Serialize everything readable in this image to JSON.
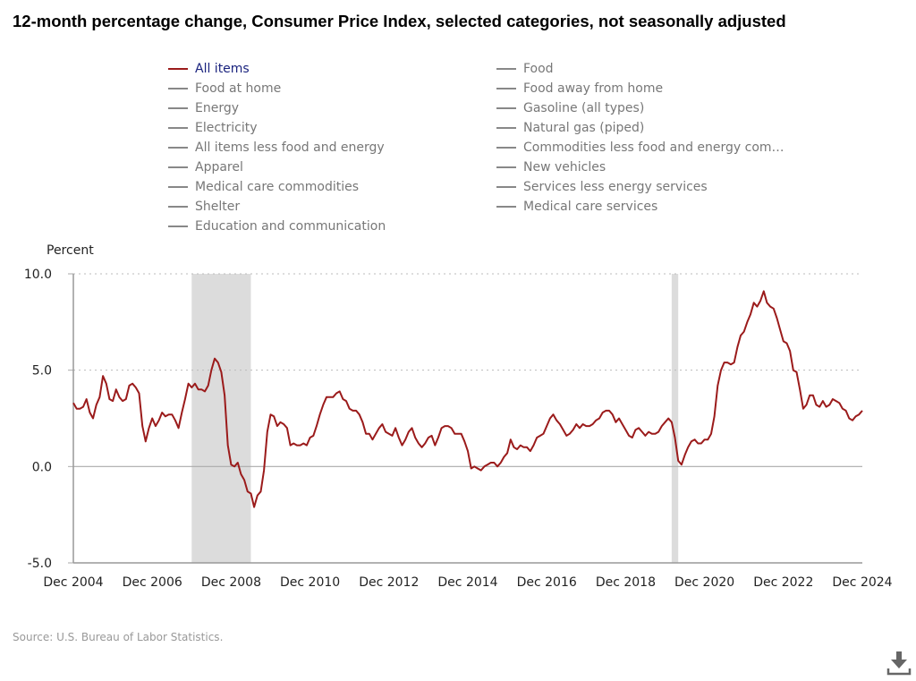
{
  "title": "12-month percentage change, Consumer Price Index, selected categories, not seasonally adjusted",
  "legend": {
    "left": [
      "All items",
      "Food at home",
      "Energy",
      "Electricity",
      "All items less food and energy",
      "Apparel",
      "Medical care commodities",
      "Shelter",
      "Education and communication"
    ],
    "right": [
      "Food",
      "Food away from home",
      "Gasoline (all types)",
      "Natural gas (piped)",
      "Commodities less food and energy com…",
      "New vehicles",
      "Services less energy services",
      "Medical care services"
    ],
    "active": "All items"
  },
  "source": "Source: U.S. Bureau of Labor Statistics.",
  "download_icon": "download-icon",
  "colors": {
    "series": "#9b1b1b",
    "active_legend_text": "#1a237e",
    "inactive": "#888888",
    "recession_shading": "#dcdcdc"
  },
  "chart_data": {
    "type": "line",
    "title": "12-month percentage change, Consumer Price Index, selected categories, not seasonally adjusted",
    "ylabel": "Percent",
    "xlabel": "",
    "ylim": [
      -5,
      10
    ],
    "yticks": [
      "10.0",
      "5.0",
      "0.0",
      "-5.0"
    ],
    "ytick_values": [
      10,
      5,
      0,
      -5
    ],
    "xticks": [
      "Dec 2004",
      "Dec 2006",
      "Dec 2008",
      "Dec 2010",
      "Dec 2012",
      "Dec 2014",
      "Dec 2016",
      "Dec 2018",
      "Dec 2020",
      "Dec 2022",
      "Dec 2024"
    ],
    "xlim": [
      "2004-12",
      "2024-12"
    ],
    "grid": "horizontal dotted",
    "frequency": "monthly",
    "start": "2004-12",
    "shaded_periods": [
      [
        "2007-12",
        "2009-06"
      ],
      [
        "2020-02",
        "2020-04"
      ]
    ],
    "series": [
      {
        "name": "All items",
        "values": [
          3.3,
          3.0,
          3.0,
          3.1,
          3.5,
          2.8,
          2.5,
          3.2,
          3.6,
          4.7,
          4.3,
          3.5,
          3.4,
          4.0,
          3.6,
          3.4,
          3.5,
          4.2,
          4.3,
          4.1,
          3.8,
          2.1,
          1.3,
          2.0,
          2.5,
          2.1,
          2.4,
          2.8,
          2.6,
          2.7,
          2.7,
          2.4,
          2.0,
          2.8,
          3.5,
          4.3,
          4.1,
          4.3,
          4.0,
          4.0,
          3.9,
          4.2,
          5.0,
          5.6,
          5.4,
          4.9,
          3.7,
          1.1,
          0.1,
          0.0,
          0.2,
          -0.4,
          -0.7,
          -1.3,
          -1.4,
          -2.1,
          -1.5,
          -1.3,
          -0.2,
          1.8,
          2.7,
          2.6,
          2.1,
          2.3,
          2.2,
          2.0,
          1.1,
          1.2,
          1.1,
          1.1,
          1.2,
          1.1,
          1.5,
          1.6,
          2.1,
          2.7,
          3.2,
          3.6,
          3.6,
          3.6,
          3.8,
          3.9,
          3.5,
          3.4,
          3.0,
          2.9,
          2.9,
          2.7,
          2.3,
          1.7,
          1.7,
          1.4,
          1.7,
          2.0,
          2.2,
          1.8,
          1.7,
          1.6,
          2.0,
          1.5,
          1.1,
          1.4,
          1.8,
          2.0,
          1.5,
          1.2,
          1.0,
          1.2,
          1.5,
          1.6,
          1.1,
          1.5,
          2.0,
          2.1,
          2.1,
          2.0,
          1.7,
          1.7,
          1.7,
          1.3,
          0.8,
          -0.1,
          0.0,
          -0.1,
          -0.2,
          0.0,
          0.1,
          0.2,
          0.2,
          0.0,
          0.2,
          0.5,
          0.7,
          1.4,
          1.0,
          0.9,
          1.1,
          1.0,
          1.0,
          0.8,
          1.1,
          1.5,
          1.6,
          1.7,
          2.1,
          2.5,
          2.7,
          2.4,
          2.2,
          1.9,
          1.6,
          1.7,
          1.9,
          2.2,
          2.0,
          2.2,
          2.1,
          2.1,
          2.2,
          2.4,
          2.5,
          2.8,
          2.9,
          2.9,
          2.7,
          2.3,
          2.5,
          2.2,
          1.9,
          1.6,
          1.5,
          1.9,
          2.0,
          1.8,
          1.6,
          1.8,
          1.7,
          1.7,
          1.8,
          2.1,
          2.3,
          2.5,
          2.3,
          1.5,
          0.3,
          0.1,
          0.6,
          1.0,
          1.3,
          1.4,
          1.2,
          1.2,
          1.4,
          1.4,
          1.7,
          2.6,
          4.2,
          5.0,
          5.4,
          5.4,
          5.3,
          5.4,
          6.2,
          6.8,
          7.0,
          7.5,
          7.9,
          8.5,
          8.3,
          8.6,
          9.1,
          8.5,
          8.3,
          8.2,
          7.7,
          7.1,
          6.5,
          6.4,
          6.0,
          5.0,
          4.9,
          4.0,
          3.0,
          3.2,
          3.7,
          3.7,
          3.2,
          3.1,
          3.4,
          3.1,
          3.2,
          3.5,
          3.4,
          3.3,
          3.0,
          2.9,
          2.5,
          2.4,
          2.6,
          2.7,
          2.9
        ]
      }
    ]
  }
}
